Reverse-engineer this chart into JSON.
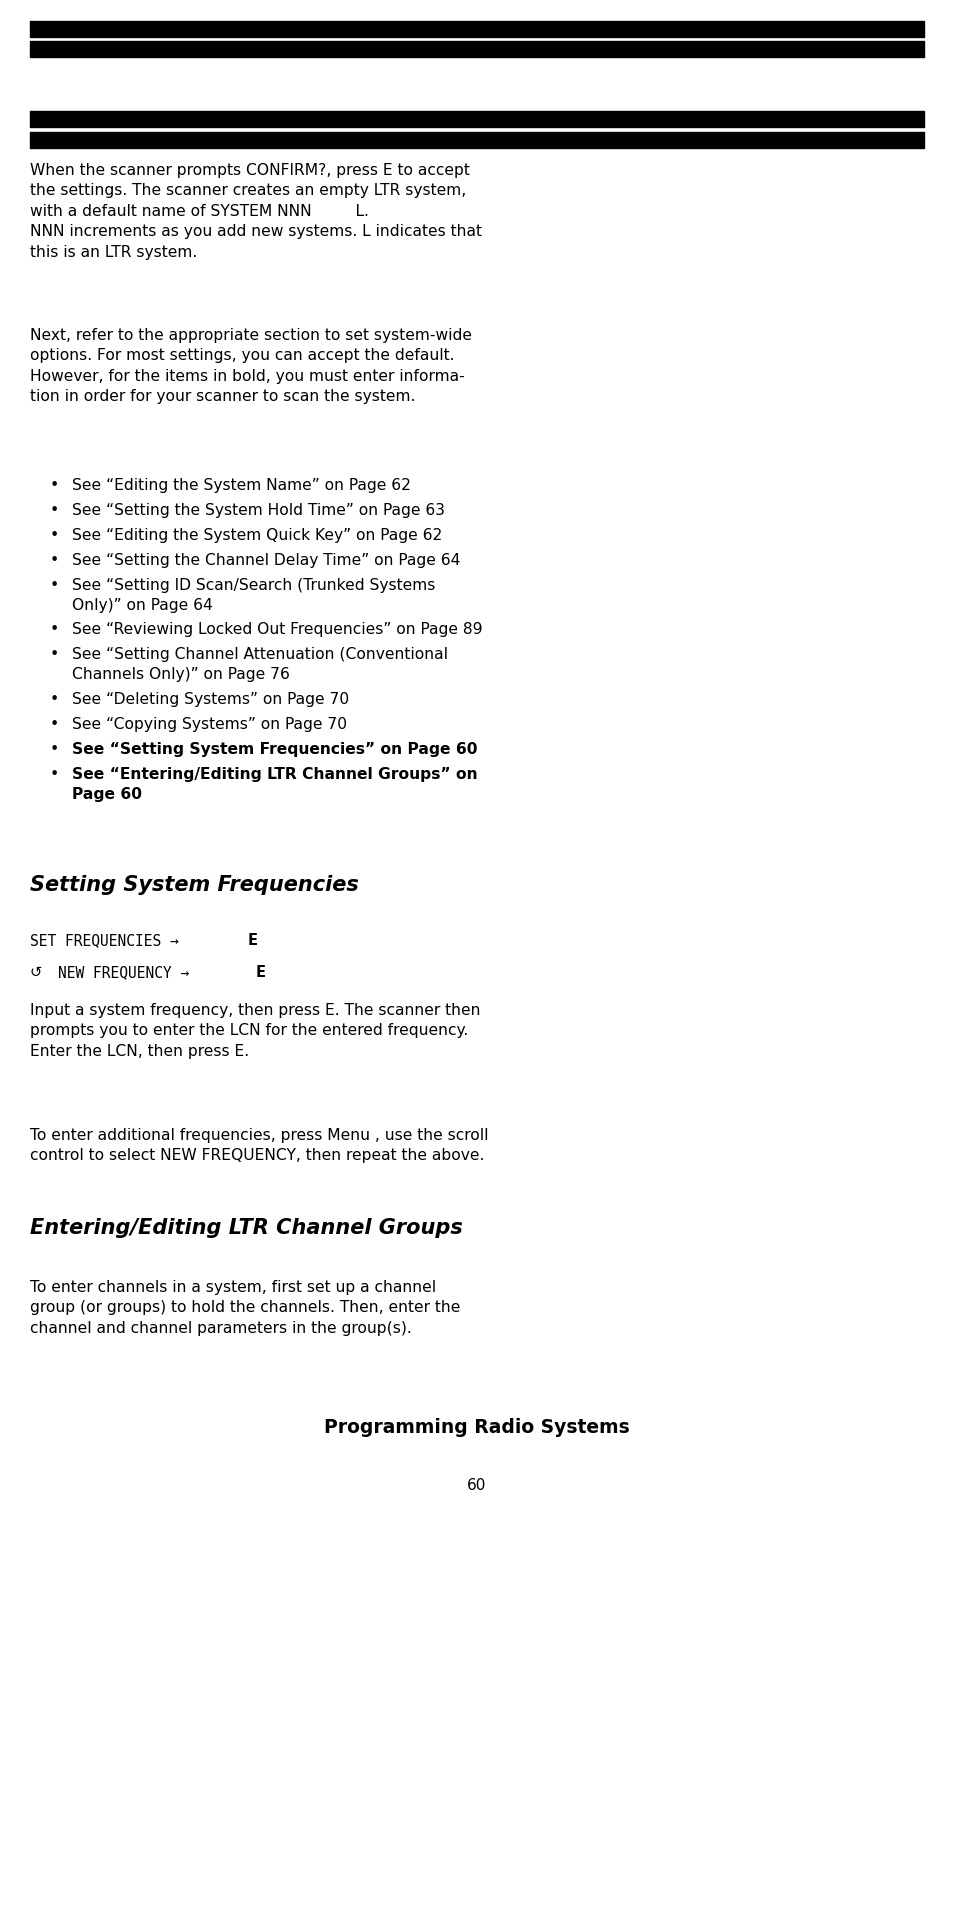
{
  "bg_color": "#ffffff",
  "text_color": "#000000",
  "page_width": 9.54,
  "page_height": 19.08,
  "lm": 0.055,
  "rm": 0.955,
  "fs_main": 11.2,
  "fs_bullet": 11.2,
  "fs_section": 15.0,
  "fs_section3": 13.5,
  "fs_cmd": 10.5,
  "fs_page": 11.0,
  "bullets": [
    {
      "text": "See “Editing the System Name” on Page 62",
      "bold": false,
      "lines": 1
    },
    {
      "text": "See “Setting the System Hold Time” on Page 63",
      "bold": false,
      "lines": 1
    },
    {
      "text": "See “Editing the System Quick Key” on Page 62",
      "bold": false,
      "lines": 1
    },
    {
      "text": "See “Setting the Channel Delay Time” on Page 64",
      "bold": false,
      "lines": 1
    },
    {
      "text": "See “Setting ID Scan/Search (Trunked Systems\nOnly)” on Page 64",
      "bold": false,
      "lines": 2
    },
    {
      "text": "See “Reviewing Locked Out Frequencies” on Page 89",
      "bold": false,
      "lines": 1
    },
    {
      "text": "See “Setting Channel Attenuation (Conventional\nChannels Only)” on Page 76",
      "bold": false,
      "lines": 2
    },
    {
      "text": "See “Deleting Systems” on Page 70",
      "bold": false,
      "lines": 1
    },
    {
      "text": "See “Copying Systems” on Page 70",
      "bold": false,
      "lines": 1
    },
    {
      "text": "See “Setting System Frequencies” on Page 60",
      "bold": true,
      "lines": 1
    },
    {
      "text": "See “Entering/Editing LTR Channel Groups” on\nPage 60",
      "bold": true,
      "lines": 2
    }
  ],
  "section1_title": "Setting System Frequencies",
  "section2_title": "Entering/Editing LTR Channel Groups",
  "section3_title": "Programming Radio Systems",
  "page_number": "60"
}
